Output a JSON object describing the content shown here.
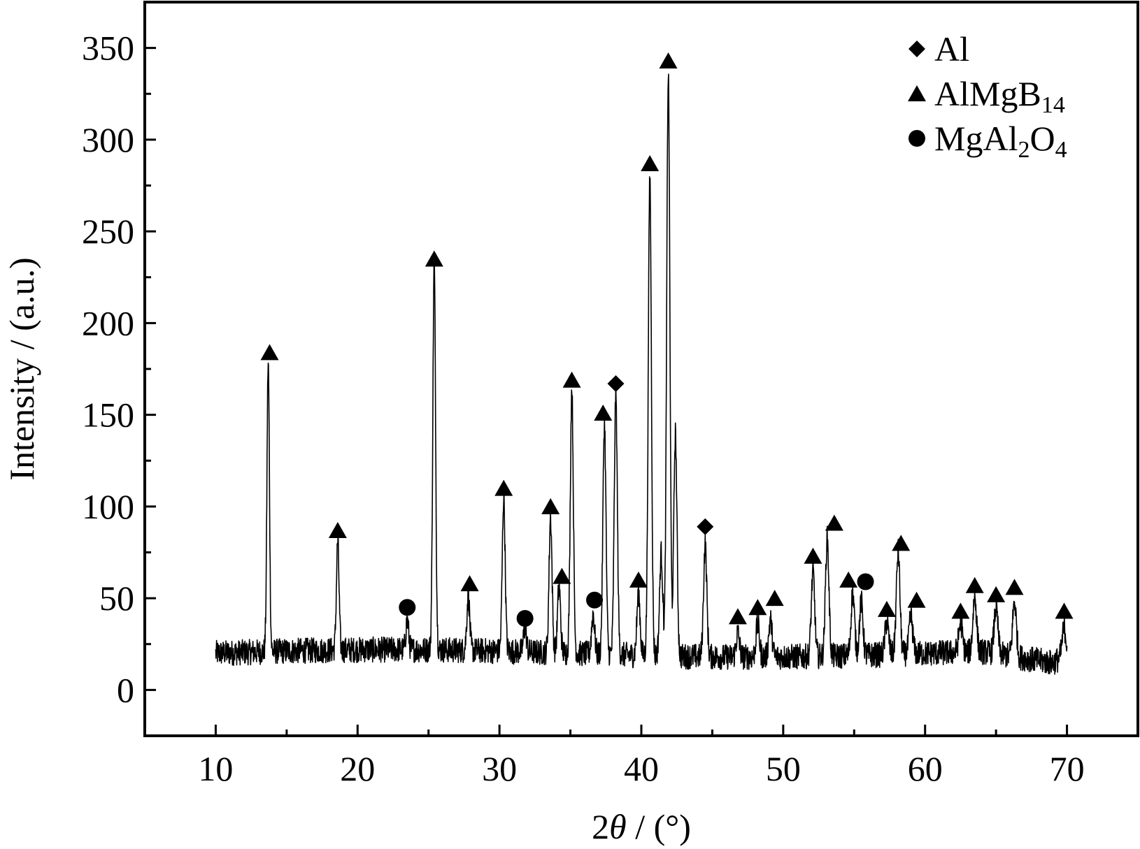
{
  "chart_data": {
    "type": "line",
    "xlabel_parts": [
      "2",
      "θ",
      " / (°)"
    ],
    "ylabel": "Intensity / (a.u.)",
    "xlim": [
      5,
      75
    ],
    "ylim": [
      -25,
      375
    ],
    "xticks": [
      10,
      20,
      30,
      40,
      50,
      60,
      70
    ],
    "yticks": [
      0,
      50,
      100,
      150,
      200,
      250,
      300,
      350
    ],
    "xtick_labels": [
      "10",
      "20",
      "30",
      "40",
      "50",
      "60",
      "70"
    ],
    "ytick_labels": [
      "0",
      "50",
      "100",
      "150",
      "200",
      "250",
      "300",
      "350"
    ],
    "baseline": 20,
    "peaks": [
      {
        "x": 13.7,
        "y": 177
      },
      {
        "x": 18.6,
        "y": 79
      },
      {
        "x": 23.5,
        "y": 36
      },
      {
        "x": 25.4,
        "y": 230
      },
      {
        "x": 27.8,
        "y": 50
      },
      {
        "x": 30.3,
        "y": 104
      },
      {
        "x": 31.8,
        "y": 33
      },
      {
        "x": 33.6,
        "y": 94
      },
      {
        "x": 34.2,
        "y": 56
      },
      {
        "x": 35.1,
        "y": 164
      },
      {
        "x": 36.6,
        "y": 42
      },
      {
        "x": 37.4,
        "y": 146
      },
      {
        "x": 38.2,
        "y": 161
      },
      {
        "x": 39.8,
        "y": 54
      },
      {
        "x": 40.6,
        "y": 281
      },
      {
        "x": 41.4,
        "y": 76
      },
      {
        "x": 41.9,
        "y": 337
      },
      {
        "x": 42.4,
        "y": 141
      },
      {
        "x": 44.5,
        "y": 81
      },
      {
        "x": 46.8,
        "y": 33
      },
      {
        "x": 48.2,
        "y": 38
      },
      {
        "x": 49.1,
        "y": 40
      },
      {
        "x": 52.1,
        "y": 66
      },
      {
        "x": 53.1,
        "y": 84
      },
      {
        "x": 54.9,
        "y": 54
      },
      {
        "x": 55.5,
        "y": 49
      },
      {
        "x": 57.3,
        "y": 38
      },
      {
        "x": 58.1,
        "y": 76
      },
      {
        "x": 59.0,
        "y": 40
      },
      {
        "x": 62.5,
        "y": 36
      },
      {
        "x": 63.5,
        "y": 50
      },
      {
        "x": 65.0,
        "y": 45
      },
      {
        "x": 66.3,
        "y": 50
      },
      {
        "x": 69.8,
        "y": 35
      }
    ],
    "markers": [
      {
        "phase": "AlMgB14",
        "x": 13.8,
        "y": 184
      },
      {
        "phase": "AlMgB14",
        "x": 18.6,
        "y": 87
      },
      {
        "phase": "AlMgB14",
        "x": 25.4,
        "y": 235
      },
      {
        "phase": "AlMgB14",
        "x": 27.9,
        "y": 58
      },
      {
        "phase": "AlMgB14",
        "x": 30.3,
        "y": 110
      },
      {
        "phase": "AlMgB14",
        "x": 33.6,
        "y": 100
      },
      {
        "phase": "AlMgB14",
        "x": 34.4,
        "y": 62
      },
      {
        "phase": "AlMgB14",
        "x": 35.1,
        "y": 169
      },
      {
        "phase": "AlMgB14",
        "x": 37.3,
        "y": 151
      },
      {
        "phase": "AlMgB14",
        "x": 39.8,
        "y": 60
      },
      {
        "phase": "AlMgB14",
        "x": 40.6,
        "y": 287
      },
      {
        "phase": "AlMgB14",
        "x": 41.9,
        "y": 343
      },
      {
        "phase": "AlMgB14",
        "x": 46.8,
        "y": 40
      },
      {
        "phase": "AlMgB14",
        "x": 48.2,
        "y": 45
      },
      {
        "phase": "AlMgB14",
        "x": 49.4,
        "y": 50
      },
      {
        "phase": "AlMgB14",
        "x": 52.1,
        "y": 73
      },
      {
        "phase": "AlMgB14",
        "x": 53.6,
        "y": 91
      },
      {
        "phase": "AlMgB14",
        "x": 54.6,
        "y": 60
      },
      {
        "phase": "AlMgB14",
        "x": 57.3,
        "y": 44
      },
      {
        "phase": "AlMgB14",
        "x": 58.3,
        "y": 80
      },
      {
        "phase": "AlMgB14",
        "x": 59.4,
        "y": 49
      },
      {
        "phase": "AlMgB14",
        "x": 62.5,
        "y": 43
      },
      {
        "phase": "AlMgB14",
        "x": 63.5,
        "y": 57
      },
      {
        "phase": "AlMgB14",
        "x": 65.0,
        "y": 52
      },
      {
        "phase": "AlMgB14",
        "x": 66.3,
        "y": 56
      },
      {
        "phase": "AlMgB14",
        "x": 69.8,
        "y": 43
      },
      {
        "phase": "Al",
        "x": 38.2,
        "y": 167
      },
      {
        "phase": "Al",
        "x": 44.5,
        "y": 89
      },
      {
        "phase": "MgAl2O4",
        "x": 23.5,
        "y": 45
      },
      {
        "phase": "MgAl2O4",
        "x": 31.8,
        "y": 39
      },
      {
        "phase": "MgAl2O4",
        "x": 36.7,
        "y": 49
      },
      {
        "phase": "MgAl2O4",
        "x": 55.8,
        "y": 59
      }
    ],
    "legend": [
      {
        "symbol": "diamond",
        "parts": [
          {
            "t": "Al",
            "sub": false
          }
        ]
      },
      {
        "symbol": "triangle",
        "parts": [
          {
            "t": "AlMgB",
            "sub": false
          },
          {
            "t": "14",
            "sub": true
          }
        ]
      },
      {
        "symbol": "circle",
        "parts": [
          {
            "t": "MgAl",
            "sub": false
          },
          {
            "t": "2",
            "sub": true
          },
          {
            "t": "O",
            "sub": false
          },
          {
            "t": "4",
            "sub": true
          }
        ]
      }
    ],
    "legend_position": "top-right",
    "colors": {
      "line": "#000000",
      "marker": "#000000"
    }
  }
}
